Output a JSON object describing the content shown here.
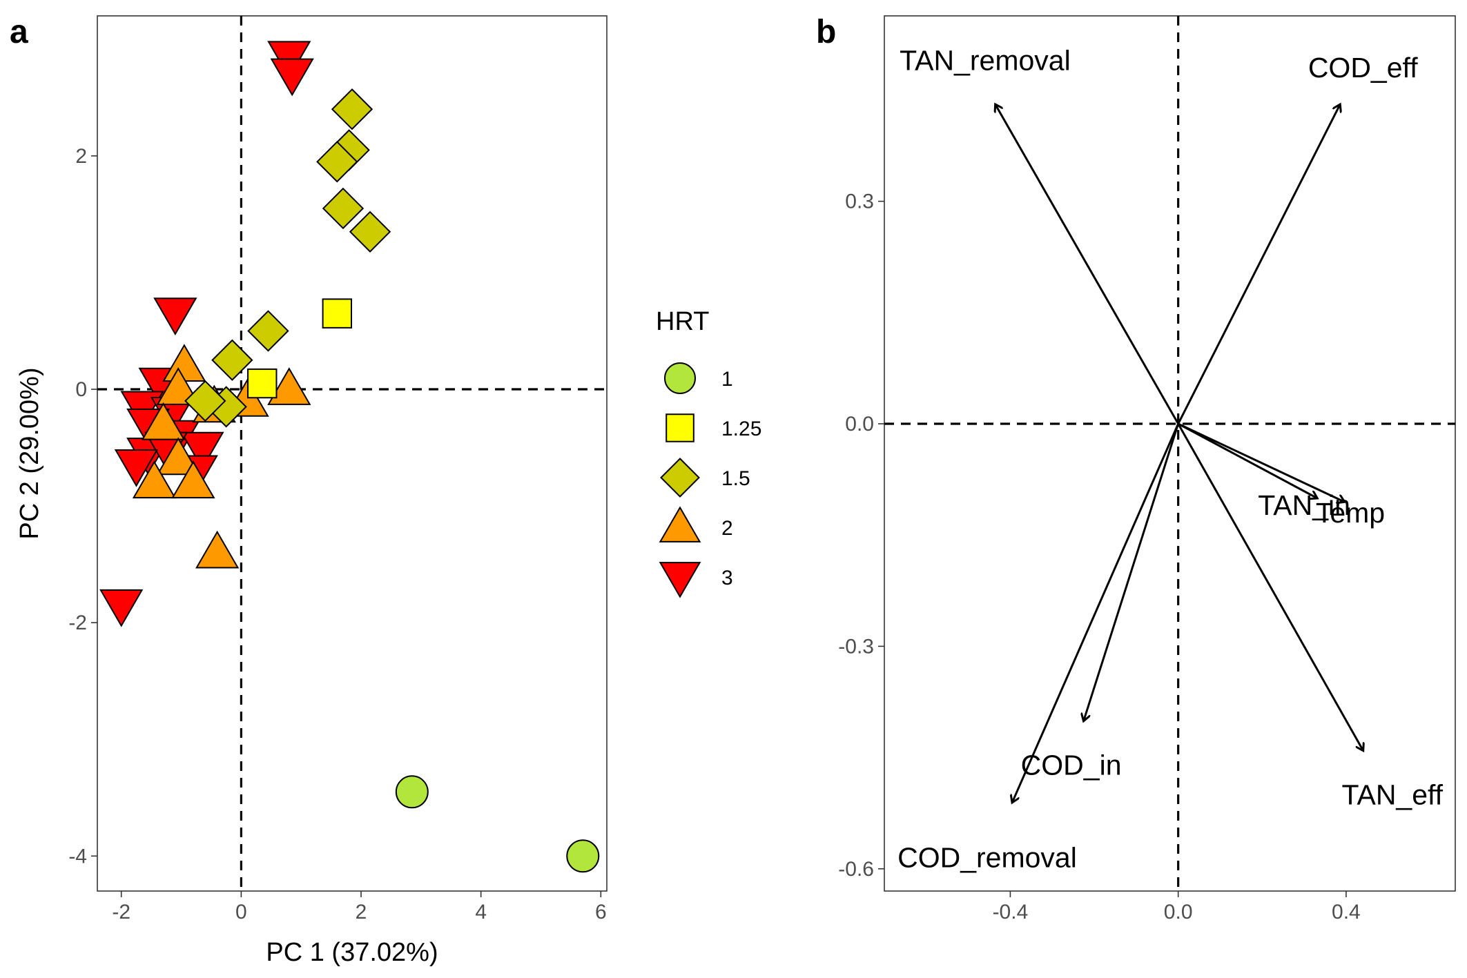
{
  "panel_a": {
    "letter": "a"
  },
  "panel_b": {
    "letter": "b"
  },
  "legend": {
    "title": "HRT",
    "entries": [
      {
        "label": "1",
        "shape": "circle",
        "color": "#b3e63d"
      },
      {
        "label": "1.25",
        "shape": "square",
        "color": "#ffff00"
      },
      {
        "label": "1.5",
        "shape": "diamond",
        "color": "#cccc00"
      },
      {
        "label": "2",
        "shape": "triangle-up",
        "color": "#ff9900"
      },
      {
        "label": "3",
        "shape": "triangle-down",
        "color": "#ff0000"
      }
    ]
  },
  "chart_data": [
    {
      "type": "scatter",
      "title": "",
      "xlabel": "PC 1 (37.02%)",
      "ylabel": "PC 2 (29.00%)",
      "xlim": [
        -2.4,
        6.1
      ],
      "ylim": [
        -4.3,
        3.2
      ],
      "x_ticks": [
        -2,
        0,
        2,
        4,
        6
      ],
      "x_tick_labels": [
        "-2",
        "0",
        "2",
        "4",
        "6"
      ],
      "y_ticks": [
        -4,
        -2,
        0,
        2
      ],
      "y_tick_labels": [
        "-4",
        "-2",
        "0",
        "2"
      ],
      "reference_lines": {
        "x": 0,
        "y": 0
      },
      "grid": false,
      "legend_position": "right",
      "series": [
        {
          "name": "1",
          "points": [
            [
              2.85,
              -3.45
            ],
            [
              5.7,
              -4.0
            ]
          ]
        },
        {
          "name": "1.25",
          "points": [
            [
              1.6,
              0.65
            ],
            [
              0.35,
              0.05
            ]
          ]
        },
        {
          "name": "1.5",
          "points": [
            [
              1.85,
              2.4
            ],
            [
              1.8,
              2.05
            ],
            [
              1.6,
              1.95
            ],
            [
              1.7,
              1.55
            ],
            [
              2.15,
              1.35
            ],
            [
              0.45,
              0.5
            ],
            [
              -0.15,
              0.25
            ],
            [
              -0.25,
              -0.15
            ],
            [
              -0.6,
              -0.1
            ]
          ]
        },
        {
          "name": "2",
          "points": [
            [
              -0.95,
              0.2
            ],
            [
              -1.05,
              0.0
            ],
            [
              -0.45,
              -0.15
            ],
            [
              0.1,
              -0.1
            ],
            [
              0.8,
              0.0
            ],
            [
              -1.3,
              -0.3
            ],
            [
              -1.05,
              -0.6
            ],
            [
              -1.45,
              -0.8
            ],
            [
              -0.8,
              -0.8
            ],
            [
              -0.4,
              -1.4
            ]
          ]
        },
        {
          "name": "3",
          "points": [
            [
              0.8,
              2.85
            ],
            [
              0.85,
              2.7
            ],
            [
              -1.1,
              0.65
            ],
            [
              -1.35,
              0.05
            ],
            [
              -1.65,
              -0.15
            ],
            [
              -1.15,
              -0.2
            ],
            [
              -1.55,
              -0.3
            ],
            [
              -1.05,
              -0.4
            ],
            [
              -1.55,
              -0.55
            ],
            [
              -0.65,
              -0.5
            ],
            [
              -1.25,
              -0.5
            ],
            [
              -1.75,
              -0.65
            ],
            [
              -0.75,
              -0.7
            ],
            [
              -2.0,
              -1.85
            ]
          ]
        }
      ]
    },
    {
      "type": "biplot-loadings",
      "title": "",
      "xlabel": "",
      "ylabel": "",
      "xlim": [
        -0.7,
        0.66
      ],
      "ylim": [
        -0.63,
        0.55
      ],
      "x_ticks": [
        -0.4,
        0.0,
        0.4
      ],
      "x_tick_labels": [
        "-0.4",
        "0.0",
        "0.4"
      ],
      "y_ticks": [
        0.3,
        0.0,
        -0.3,
        -0.6
      ],
      "y_tick_labels": [
        "0.3",
        "0.0",
        "-0.3",
        "-0.6"
      ],
      "reference_lines": {
        "x": 0,
        "y": 0
      },
      "grid": false,
      "vectors": [
        {
          "name": "TAN_removal",
          "x": -0.435,
          "y": 0.43,
          "label_x": -0.46,
          "label_y": 0.49
        },
        {
          "name": "COD_eff",
          "x": 0.385,
          "y": 0.43,
          "label_x": 0.44,
          "label_y": 0.48
        },
        {
          "name": "TAN_in",
          "x": 0.33,
          "y": -0.1,
          "label_x": 0.3,
          "label_y": -0.11
        },
        {
          "name": "Temp",
          "x": 0.395,
          "y": -0.105,
          "label_x": 0.41,
          "label_y": -0.12
        },
        {
          "name": "TAN_eff",
          "x": 0.44,
          "y": -0.44,
          "label_x": 0.51,
          "label_y": -0.5
        },
        {
          "name": "COD_in",
          "x": -0.225,
          "y": -0.4,
          "label_x": -0.255,
          "label_y": -0.46
        },
        {
          "name": "COD_removal",
          "x": -0.395,
          "y": -0.51,
          "label_x": -0.455,
          "label_y": -0.585
        }
      ]
    }
  ]
}
